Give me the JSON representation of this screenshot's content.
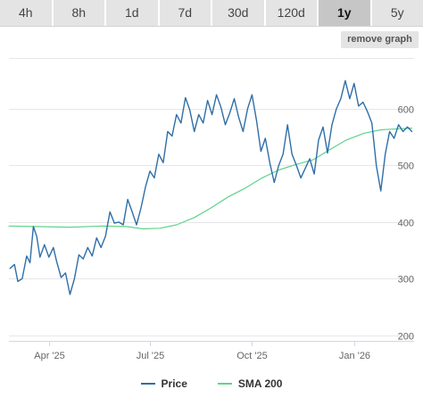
{
  "tabs": [
    {
      "label": "4h",
      "active": false
    },
    {
      "label": "8h",
      "active": false
    },
    {
      "label": "1d",
      "active": false
    },
    {
      "label": "7d",
      "active": false
    },
    {
      "label": "30d",
      "active": false
    },
    {
      "label": "120d",
      "active": false
    },
    {
      "label": "1y",
      "active": true
    },
    {
      "label": "5y",
      "active": false
    }
  ],
  "remove_graph_label": "remove graph",
  "legend": [
    {
      "label": "Price",
      "color": "#2f6ea8"
    },
    {
      "label": "SMA 200",
      "color": "#5fd38a"
    }
  ],
  "chart_data": {
    "type": "line",
    "title": "",
    "xlabel": "",
    "ylabel": "",
    "x_ticks": [
      {
        "label": "Apr '25",
        "x": "2025-04-01"
      },
      {
        "label": "Jul '25",
        "x": "2025-07-01"
      },
      {
        "label": "Oct '25",
        "x": "2025-10-01"
      },
      {
        "label": "Jan '26",
        "x": "2026-01-01"
      }
    ],
    "y_ticks": [
      200,
      300,
      400,
      500,
      600
    ],
    "xlim": [
      "2025-02-24",
      "2026-02-24"
    ],
    "ylim": [
      190,
      690
    ],
    "grid": true,
    "legend_position": "bottom",
    "series": [
      {
        "name": "Price",
        "color": "#2f6ea8",
        "points": [
          [
            "2025-02-25",
            318
          ],
          [
            "2025-03-01",
            325
          ],
          [
            "2025-03-04",
            295
          ],
          [
            "2025-03-08",
            300
          ],
          [
            "2025-03-12",
            340
          ],
          [
            "2025-03-15",
            328
          ],
          [
            "2025-03-18",
            392
          ],
          [
            "2025-03-21",
            375
          ],
          [
            "2025-03-24",
            338
          ],
          [
            "2025-03-28",
            360
          ],
          [
            "2025-04-01",
            338
          ],
          [
            "2025-04-05",
            355
          ],
          [
            "2025-04-08",
            330
          ],
          [
            "2025-04-12",
            302
          ],
          [
            "2025-04-16",
            310
          ],
          [
            "2025-04-20",
            272
          ],
          [
            "2025-04-24",
            300
          ],
          [
            "2025-04-28",
            342
          ],
          [
            "2025-05-02",
            335
          ],
          [
            "2025-05-06",
            355
          ],
          [
            "2025-05-10",
            340
          ],
          [
            "2025-05-14",
            372
          ],
          [
            "2025-05-18",
            355
          ],
          [
            "2025-05-22",
            375
          ],
          [
            "2025-05-26",
            418
          ],
          [
            "2025-05-30",
            398
          ],
          [
            "2025-06-03",
            400
          ],
          [
            "2025-06-07",
            395
          ],
          [
            "2025-06-11",
            440
          ],
          [
            "2025-06-15",
            418
          ],
          [
            "2025-06-19",
            395
          ],
          [
            "2025-06-23",
            425
          ],
          [
            "2025-06-27",
            462
          ],
          [
            "2025-07-01",
            490
          ],
          [
            "2025-07-05",
            478
          ],
          [
            "2025-07-09",
            520
          ],
          [
            "2025-07-13",
            505
          ],
          [
            "2025-07-17",
            560
          ],
          [
            "2025-07-21",
            552
          ],
          [
            "2025-07-25",
            590
          ],
          [
            "2025-07-29",
            575
          ],
          [
            "2025-08-02",
            620
          ],
          [
            "2025-08-06",
            598
          ],
          [
            "2025-08-10",
            560
          ],
          [
            "2025-08-14",
            590
          ],
          [
            "2025-08-18",
            575
          ],
          [
            "2025-08-22",
            615
          ],
          [
            "2025-08-26",
            590
          ],
          [
            "2025-08-30",
            625
          ],
          [
            "2025-09-03",
            603
          ],
          [
            "2025-09-07",
            572
          ],
          [
            "2025-09-11",
            593
          ],
          [
            "2025-09-15",
            618
          ],
          [
            "2025-09-19",
            585
          ],
          [
            "2025-09-23",
            560
          ],
          [
            "2025-09-27",
            600
          ],
          [
            "2025-10-01",
            625
          ],
          [
            "2025-10-05",
            580
          ],
          [
            "2025-10-09",
            525
          ],
          [
            "2025-10-13",
            548
          ],
          [
            "2025-10-17",
            505
          ],
          [
            "2025-10-21",
            470
          ],
          [
            "2025-10-25",
            500
          ],
          [
            "2025-10-29",
            520
          ],
          [
            "2025-11-02",
            572
          ],
          [
            "2025-11-06",
            520
          ],
          [
            "2025-11-10",
            500
          ],
          [
            "2025-11-14",
            478
          ],
          [
            "2025-11-18",
            495
          ],
          [
            "2025-11-22",
            512
          ],
          [
            "2025-11-26",
            485
          ],
          [
            "2025-11-30",
            545
          ],
          [
            "2025-12-04",
            568
          ],
          [
            "2025-12-08",
            522
          ],
          [
            "2025-12-12",
            572
          ],
          [
            "2025-12-16",
            600
          ],
          [
            "2025-12-20",
            618
          ],
          [
            "2025-12-24",
            650
          ],
          [
            "2025-12-28",
            618
          ],
          [
            "2026-01-01",
            645
          ],
          [
            "2026-01-05",
            605
          ],
          [
            "2026-01-09",
            612
          ],
          [
            "2026-01-13",
            595
          ],
          [
            "2026-01-17",
            575
          ],
          [
            "2026-01-21",
            500
          ],
          [
            "2026-01-25",
            455
          ],
          [
            "2026-01-29",
            520
          ],
          [
            "2026-02-02",
            560
          ],
          [
            "2026-02-06",
            548
          ],
          [
            "2026-02-10",
            572
          ],
          [
            "2026-02-14",
            560
          ],
          [
            "2026-02-18",
            568
          ],
          [
            "2026-02-22",
            560
          ]
        ]
      },
      {
        "name": "SMA 200",
        "color": "#5fd38a",
        "points": [
          [
            "2025-02-24",
            393
          ],
          [
            "2025-03-20",
            392
          ],
          [
            "2025-04-20",
            391
          ],
          [
            "2025-05-20",
            393
          ],
          [
            "2025-06-10",
            392
          ],
          [
            "2025-06-25",
            388
          ],
          [
            "2025-07-10",
            389
          ],
          [
            "2025-07-25",
            395
          ],
          [
            "2025-08-10",
            408
          ],
          [
            "2025-08-25",
            425
          ],
          [
            "2025-09-10",
            445
          ],
          [
            "2025-09-25",
            460
          ],
          [
            "2025-10-10",
            478
          ],
          [
            "2025-10-25",
            492
          ],
          [
            "2025-11-10",
            502
          ],
          [
            "2025-11-25",
            510
          ],
          [
            "2025-12-10",
            528
          ],
          [
            "2025-12-25",
            545
          ],
          [
            "2026-01-10",
            557
          ],
          [
            "2026-01-25",
            563
          ],
          [
            "2026-02-10",
            565
          ],
          [
            "2026-02-22",
            566
          ]
        ]
      }
    ]
  }
}
